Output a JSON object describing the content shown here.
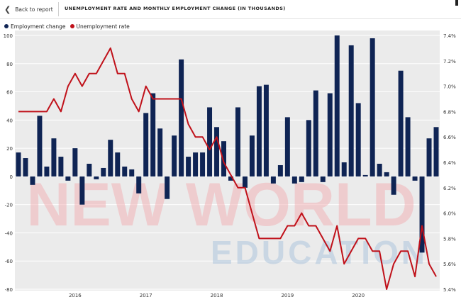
{
  "topbar": {
    "back_label": "Back to report",
    "title": "UNEMPLOYMENT RATE AND MONTHLY EMPLOYMENT CHANGE (IN THOUSANDS)"
  },
  "icons": {
    "back": "chevron-left-icon"
  },
  "watermark": {
    "line1": "NEW WORLD",
    "line2": "EDUCATION"
  },
  "colors": {
    "employment": "#0f2454",
    "unemployment": "#c0111a",
    "plot_background": "#ebebeb"
  },
  "chart_data": {
    "type": "bar",
    "legend_placement": "top-left",
    "grid": true,
    "series": [
      {
        "name": "Employment change",
        "type": "bar",
        "axis": "left",
        "values": [
          17,
          13,
          -6,
          43,
          7,
          27,
          14,
          -3,
          20,
          -20,
          9,
          -2,
          6,
          26,
          17,
          7,
          5,
          -12,
          45,
          59,
          34,
          -16,
          29,
          83,
          14,
          17,
          17,
          49,
          35,
          25,
          -3,
          49,
          -8,
          29,
          64,
          65,
          -5,
          8,
          42,
          -5,
          -4,
          40,
          61,
          -4,
          59,
          100,
          10,
          93,
          52,
          1,
          98,
          9,
          3,
          -13,
          75,
          42,
          -3,
          -54,
          27,
          35
        ]
      },
      {
        "name": "Unemployment rate",
        "type": "line",
        "axis": "right",
        "unit": "%",
        "values": [
          6.8,
          6.8,
          6.8,
          6.8,
          6.8,
          6.9,
          6.8,
          7.0,
          7.1,
          7.0,
          7.1,
          7.1,
          7.2,
          7.3,
          7.1,
          7.1,
          6.9,
          6.8,
          7.0,
          6.9,
          6.9,
          6.9,
          6.9,
          6.9,
          6.7,
          6.6,
          6.6,
          6.5,
          6.6,
          6.4,
          6.3,
          6.2,
          6.2,
          6.0,
          5.8,
          5.8,
          5.8,
          5.8,
          5.9,
          5.9,
          6.0,
          5.9,
          5.9,
          5.8,
          5.7,
          5.9,
          5.6,
          5.7,
          5.8,
          5.8,
          5.7,
          5.7,
          5.4,
          5.6,
          5.7,
          5.7,
          5.5,
          5.9,
          5.6,
          5.5
        ]
      }
    ],
    "y_left": {
      "min": -80,
      "max": 100,
      "ticks": [
        -80,
        -60,
        -40,
        -20,
        0,
        20,
        40,
        60,
        80,
        100
      ]
    },
    "y_right": {
      "min": 5.4,
      "max": 7.4,
      "ticks": [
        "5.4%",
        "5.6%",
        "5.8%",
        "6.0%",
        "6.2%",
        "6.4%",
        "6.6%",
        "6.8%",
        "7.0%",
        "7.2%",
        "7.4%"
      ]
    },
    "x_ticks": [
      "2016",
      "2017",
      "2018",
      "2019",
      "2020"
    ]
  }
}
